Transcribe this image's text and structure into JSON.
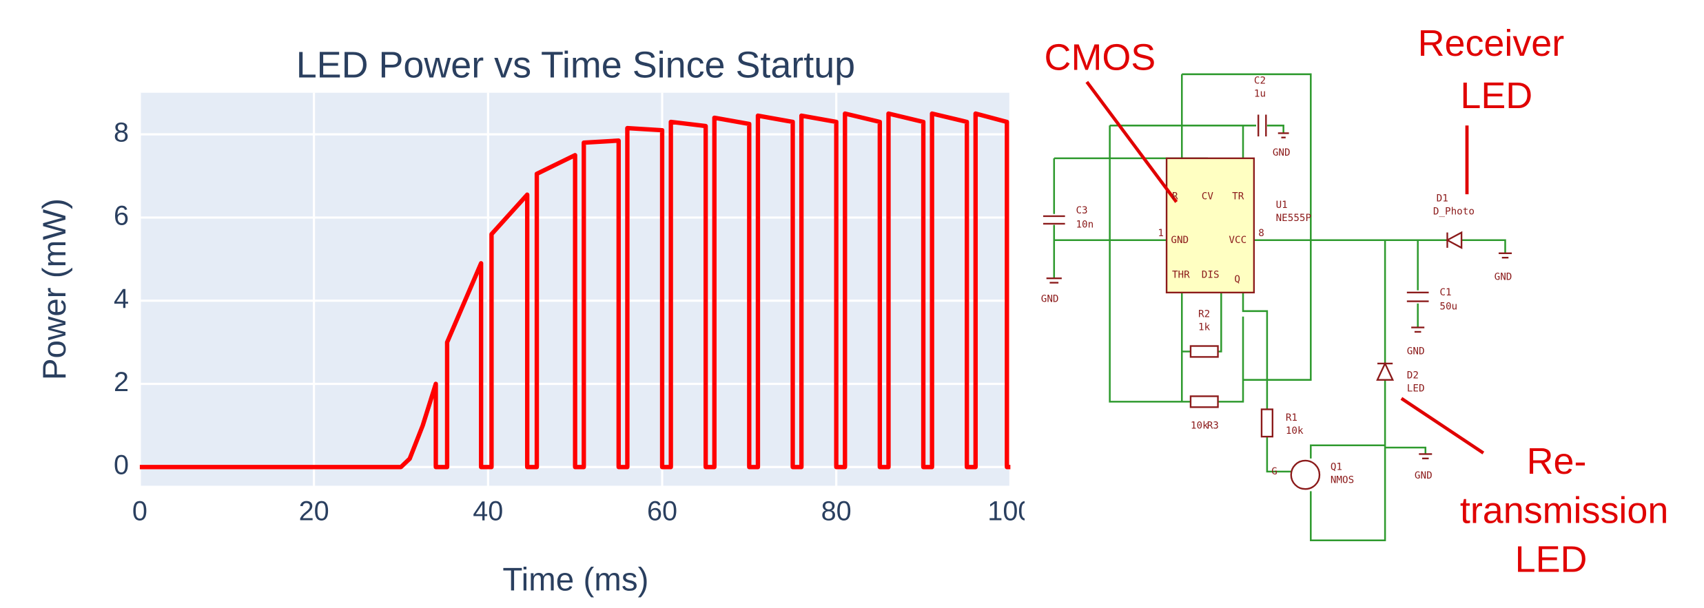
{
  "chart_data": {
    "type": "line",
    "title": "LED Power vs Time Since Startup",
    "x_label": "Time (ms)",
    "y_label": "Power (mW)",
    "x": [
      0,
      30,
      31,
      32.5,
      34,
      34,
      35.3,
      35.3,
      39.2,
      39.2,
      40.4,
      40.4,
      44.5,
      44.5,
      45.6,
      45.6,
      50,
      50,
      51,
      51,
      55,
      55,
      56,
      56,
      60,
      60,
      61,
      61,
      65,
      65,
      66,
      66,
      70,
      70,
      71,
      71,
      75,
      75,
      76,
      76,
      80,
      80,
      81,
      81,
      85,
      85,
      86,
      86,
      90,
      90,
      91,
      91,
      95,
      95,
      96,
      96,
      99.6,
      99.6,
      100
    ],
    "values": [
      0,
      0,
      0.2,
      1.0,
      2,
      0,
      0,
      3,
      4.9,
      0,
      0,
      5.6,
      6.55,
      0,
      0,
      7.05,
      7.5,
      0,
      0,
      7.8,
      7.85,
      0,
      0,
      8.15,
      8.1,
      0,
      0,
      8.3,
      8.2,
      0,
      0,
      8.4,
      8.25,
      0,
      0,
      8.45,
      8.3,
      0,
      0,
      8.45,
      8.3,
      0,
      0,
      8.5,
      8.3,
      0,
      0,
      8.5,
      8.3,
      0,
      0,
      8.5,
      8.3,
      0,
      0,
      8.5,
      8.3,
      0,
      0
    ],
    "color": "#ff0000",
    "xlim": [
      0,
      100
    ],
    "ylim": [
      -0.45,
      9
    ],
    "xticks": [
      0,
      20,
      40,
      60,
      80,
      100
    ],
    "yticks": [
      0,
      2,
      4,
      6,
      8
    ],
    "grid": true
  },
  "diagram": {
    "annotations": [
      "CMOS",
      "Receiver",
      "LED",
      "Re-",
      "transmission",
      "LED"
    ],
    "labels": [
      "C2",
      "1u",
      "GND",
      "U1",
      "NE555P",
      "C3",
      "10n",
      "GND",
      "GND",
      "VCC",
      "D1",
      "D_Photo",
      "GND",
      "C1",
      "50u",
      "GND",
      "R2",
      "1k",
      "D2",
      "LED",
      "10k",
      "R3",
      "R1",
      "10k",
      "Q1",
      "NMOS",
      "GND",
      "G",
      "R",
      "CV",
      "TR",
      "THR",
      "DIS",
      "Q",
      "1",
      "8"
    ]
  }
}
